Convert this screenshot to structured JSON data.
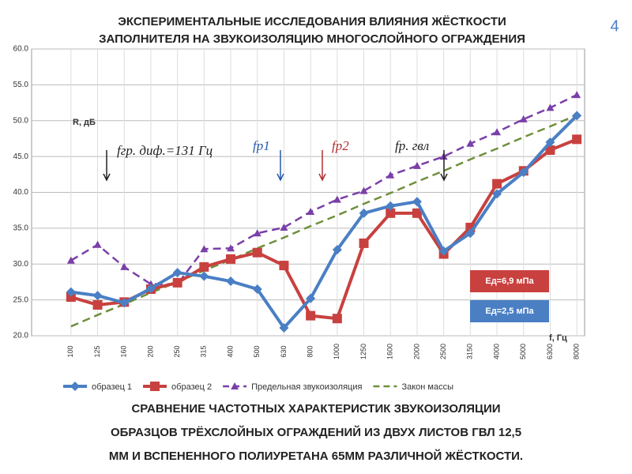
{
  "slide_number": "4",
  "title_lines": [
    "ЭКСПЕРИМЕНТАЛЬНЫЕ ИССЛЕДОВАНИЯ ВЛИЯНИЯ ЖЁСТКОСТИ",
    "ЗАПОЛНИТЕЛЯ НА ЗВУКОИЗОЛЯЦИЮ МНОГОСЛОЙНОГО ОГРАЖДЕНИЯ"
  ],
  "caption_lines": [
    "СРАВНЕНИЕ ЧАСТОТНЫХ ХАРАКТЕРИСТИК ЗВУКОИЗОЛЯЦИИ",
    "ОБРАЗЦОВ ТРЁХСЛОЙНЫХ ОГРАЖДЕНИЙ ИЗ ДВУХ ЛИСТОВ ГВЛ 12,5",
    "ММ И ВСПЕНЕННОГО ПОЛИУРЕТАНА 65ММ РАЗЛИЧНОЙ ЖЁСТКОСТИ."
  ],
  "chart_data": {
    "type": "line",
    "y_label": "R, дБ",
    "x_label": "f, Гц",
    "categories": [
      "100",
      "125",
      "160",
      "200",
      "250",
      "315",
      "400",
      "500",
      "630",
      "800",
      "1000",
      "1250",
      "1600",
      "2000",
      "2500",
      "3150",
      "4000",
      "5000",
      "6300",
      "8000"
    ],
    "series": [
      {
        "name": "образец 1",
        "color": "#4a7fc4",
        "marker": "diamond",
        "values": [
          26.1,
          25.6,
          24.6,
          26.6,
          28.8,
          28.3,
          27.6,
          26.5,
          21.1,
          25.2,
          32.0,
          37.1,
          38.1,
          38.7,
          31.8,
          34.3,
          39.8,
          42.8,
          47.0,
          50.7
        ]
      },
      {
        "name": "образец 2",
        "color": "#c8413f",
        "marker": "square",
        "values": [
          25.4,
          24.3,
          24.7,
          26.5,
          27.4,
          29.6,
          30.7,
          31.6,
          29.8,
          22.8,
          22.4,
          32.9,
          37.1,
          37.1,
          31.4,
          35.1,
          41.2,
          43.0,
          45.9,
          47.4
        ]
      },
      {
        "name": "Предельная звукоизоляция",
        "color": "#7a3fa8",
        "marker": "triangle",
        "dashed": true,
        "values": [
          30.5,
          32.7,
          29.6,
          27.2,
          27.2,
          32.1,
          32.2,
          34.3,
          35.1,
          37.3,
          39.0,
          40.2,
          42.4,
          43.7,
          45.0,
          46.8,
          48.4,
          50.2,
          51.8,
          53.6
        ]
      },
      {
        "name": "Закон массы",
        "color": "#6e8f3a",
        "marker": "none",
        "dashed": true,
        "values": [
          21.3,
          22.9,
          24.4,
          26.0,
          27.5,
          29.1,
          30.6,
          32.2,
          33.7,
          35.3,
          36.8,
          38.4,
          39.9,
          41.5,
          43.0,
          44.6,
          46.1,
          47.7,
          49.2,
          50.8
        ]
      }
    ],
    "ylim": [
      20,
      60
    ],
    "yticks": [
      {
        "value": 20,
        "label": "20.0"
      },
      {
        "value": 25,
        "label": "25.0"
      },
      {
        "value": 30,
        "label": "30.0"
      },
      {
        "value": 35,
        "label": "35.0"
      },
      {
        "value": 40,
        "label": "40.0"
      },
      {
        "value": 45,
        "label": "45.0"
      },
      {
        "value": 50,
        "label": "50.0"
      },
      {
        "value": 55,
        "label": "55.0"
      },
      {
        "value": 60,
        "label": "60.0"
      }
    ],
    "grid": true,
    "annotations": [
      "fгр. диф.=131 Гц",
      "fр1",
      "fр2",
      "fр. гвл"
    ],
    "boxes": [
      {
        "text": "Eд=6,9 мПа",
        "color": "#c8413f"
      },
      {
        "text": "Eд=2,5 мПа",
        "color": "#4a7fc4"
      }
    ]
  }
}
